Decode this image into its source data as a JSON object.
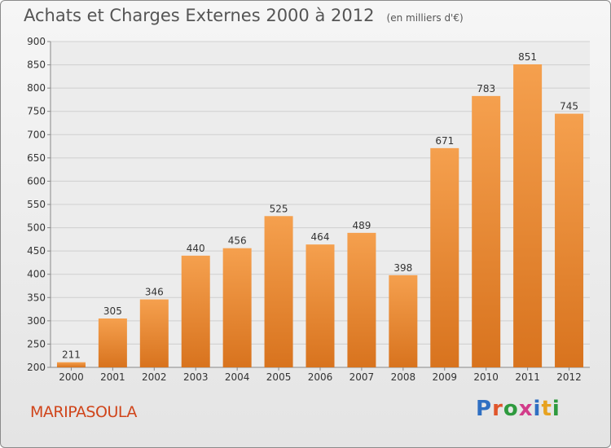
{
  "chart_data": {
    "type": "bar",
    "title": "Achats et Charges Externes 2000 à 2012",
    "unit_note": "(en milliers d'€)",
    "categories": [
      "2000",
      "2001",
      "2002",
      "2003",
      "2004",
      "2005",
      "2006",
      "2007",
      "2008",
      "2009",
      "2010",
      "2011",
      "2012"
    ],
    "values": [
      211,
      305,
      346,
      440,
      456,
      525,
      464,
      489,
      398,
      671,
      783,
      851,
      745
    ],
    "ylim": [
      200,
      900
    ],
    "yticks": [
      200,
      250,
      300,
      350,
      400,
      450,
      500,
      550,
      600,
      650,
      700,
      750,
      800,
      850,
      900
    ],
    "grid": true,
    "bar_color_top": "#f5a04e",
    "bar_color_bottom": "#d8731e"
  },
  "commune": "MARIPASOULA",
  "logo": {
    "text": "Proxiti",
    "letter_colors": [
      "#2f6fc2",
      "#e0562b",
      "#2e9a3e",
      "#d23c8a",
      "#2f6fc2",
      "#e7a21f",
      "#2e9a3e"
    ]
  }
}
